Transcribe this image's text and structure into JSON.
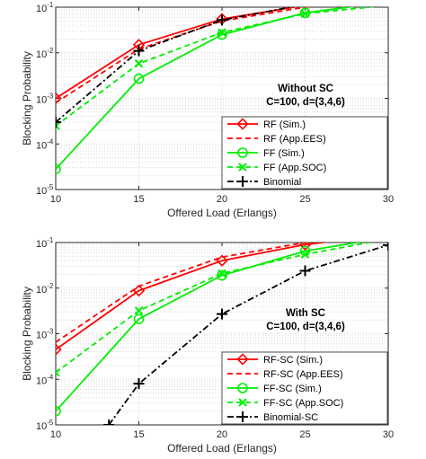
{
  "chart_data": [
    {
      "type": "line",
      "title": "",
      "xlabel": "Offered Load (Erlangs)",
      "ylabel": "Blocking Probability",
      "yscale": "log",
      "xlim": [
        10,
        30
      ],
      "ylim": [
        1e-05,
        0.1
      ],
      "grid": "dotted",
      "x_ticks": [
        "10",
        "15",
        "20",
        "25",
        "30"
      ],
      "y_ticks": [
        {
          "base": "10",
          "exp": "-5"
        },
        {
          "base": "10",
          "exp": "-4"
        },
        {
          "base": "10",
          "exp": "-3"
        },
        {
          "base": "10",
          "exp": "-2"
        },
        {
          "base": "10",
          "exp": "-1"
        }
      ],
      "annotation": [
        "Without SC",
        "C=100, d=(3,4,6)"
      ],
      "legend_position": "bottom-right",
      "series": [
        {
          "name": "RF (Sim.)",
          "color": "#ff0000",
          "dash": "solid",
          "marker": "diamond",
          "x": [
            10,
            15,
            20,
            25,
            30
          ],
          "y": [
            0.001,
            0.015,
            0.055,
            0.11,
            0.18
          ]
        },
        {
          "name": "RF (App.EES)",
          "color": "#ff0000",
          "dash": "dashed",
          "marker": "none",
          "x": [
            10,
            15,
            20,
            25,
            30
          ],
          "y": [
            0.0008,
            0.012,
            0.05,
            0.1,
            0.17
          ]
        },
        {
          "name": "FF (Sim.)",
          "color": "#00ee00",
          "dash": "solid",
          "marker": "circle",
          "x": [
            10,
            15,
            20,
            25,
            30
          ],
          "y": [
            2.8e-05,
            0.0027,
            0.025,
            0.075,
            0.13
          ]
        },
        {
          "name": "FF (App.SOC)",
          "color": "#00ee00",
          "dash": "dashed",
          "marker": "x",
          "x": [
            10,
            15,
            20,
            25,
            30
          ],
          "y": [
            0.00025,
            0.0058,
            0.028,
            0.072,
            0.11
          ]
        },
        {
          "name": "Binomial",
          "color": "#000000",
          "dash": "dashdot",
          "marker": "plus",
          "x": [
            10,
            15,
            20,
            25,
            30
          ],
          "y": [
            0.0003,
            0.011,
            0.052,
            0.115,
            0.2
          ]
        }
      ]
    },
    {
      "type": "line",
      "title": "",
      "xlabel": "Offered Load (Erlangs)",
      "ylabel": "Blocking Probability",
      "yscale": "log",
      "xlim": [
        10,
        30
      ],
      "ylim": [
        1e-05,
        0.1
      ],
      "grid": "dotted",
      "x_ticks": [
        "10",
        "15",
        "20",
        "25",
        "30"
      ],
      "y_ticks": [
        {
          "base": "10",
          "exp": "-5"
        },
        {
          "base": "10",
          "exp": "-4"
        },
        {
          "base": "10",
          "exp": "-3"
        },
        {
          "base": "10",
          "exp": "-2"
        },
        {
          "base": "10",
          "exp": "-1"
        }
      ],
      "annotation": [
        "With SC",
        "C=100, d=(3,4,6)"
      ],
      "legend_position": "bottom-right",
      "series": [
        {
          "name": "RF-SC (Sim.)",
          "color": "#ff0000",
          "dash": "solid",
          "marker": "diamond",
          "x": [
            10,
            15,
            20,
            25,
            30
          ],
          "y": [
            0.00045,
            0.0088,
            0.04,
            0.09,
            0.15
          ]
        },
        {
          "name": "RF-SC (App.EES)",
          "color": "#ff0000",
          "dash": "dashed",
          "marker": "none",
          "x": [
            10,
            15,
            20,
            25,
            30
          ],
          "y": [
            0.00065,
            0.011,
            0.048,
            0.1,
            0.16
          ]
        },
        {
          "name": "FF-SC (Sim.)",
          "color": "#00ee00",
          "dash": "solid",
          "marker": "circle",
          "x": [
            10,
            15,
            20,
            25,
            30
          ],
          "y": [
            2e-05,
            0.0021,
            0.019,
            0.065,
            0.13
          ]
        },
        {
          "name": "FF-SC (App.SOC)",
          "color": "#00ee00",
          "dash": "dashed",
          "marker": "x",
          "x": [
            10,
            15,
            20,
            25,
            30
          ],
          "y": [
            0.00014,
            0.0032,
            0.021,
            0.055,
            0.12
          ]
        },
        {
          "name": "Binomial-SC",
          "color": "#000000",
          "dash": "dashdot",
          "marker": "plus",
          "x": [
            13.2,
            15,
            20,
            25,
            30
          ],
          "y": [
            1e-05,
            8e-05,
            0.0027,
            0.024,
            0.088
          ]
        }
      ]
    }
  ]
}
